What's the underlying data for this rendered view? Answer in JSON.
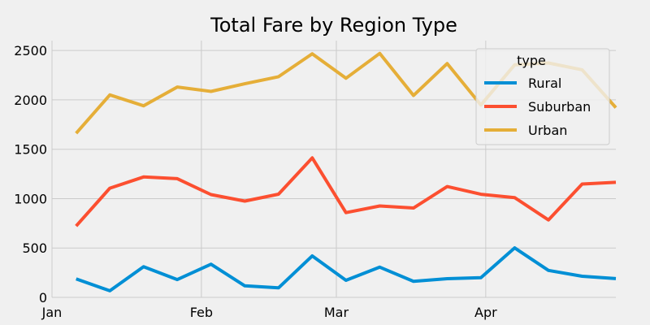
{
  "chart_data": {
    "type": "line",
    "title": "Total Fare by Region Type",
    "xlabel": "",
    "ylabel": "",
    "x": [
      "2019-01-06",
      "2019-01-13",
      "2019-01-20",
      "2019-01-27",
      "2019-02-03",
      "2019-02-10",
      "2019-02-17",
      "2019-02-24",
      "2019-03-03",
      "2019-03-10",
      "2019-03-17",
      "2019-03-24",
      "2019-03-31",
      "2019-04-07",
      "2019-04-14",
      "2019-04-21",
      "2019-04-28"
    ],
    "xlim": [
      "2019-01-01",
      "2019-04-28"
    ],
    "ylim": [
      0,
      2600
    ],
    "x_ticks": [
      {
        "date": "2019-01-01",
        "label": "Jan"
      },
      {
        "date": "2019-02-01",
        "label": "Feb"
      },
      {
        "date": "2019-03-01",
        "label": "Mar"
      },
      {
        "date": "2019-04-01",
        "label": "Apr"
      }
    ],
    "y_ticks": [
      0,
      500,
      1000,
      1500,
      2000,
      2500
    ],
    "grid": true,
    "legend": {
      "title": "type",
      "placement": "top-right"
    },
    "series": [
      {
        "name": "Rural",
        "color": "#008fd5",
        "values": [
          188,
          67,
          310,
          180,
          336,
          117,
          96,
          420,
          173,
          306,
          162,
          189,
          199,
          501,
          273,
          214,
          190
        ]
      },
      {
        "name": "Suburban",
        "color": "#fc4f30",
        "values": [
          722,
          1106,
          1219,
          1202,
          1041,
          975,
          1045,
          1413,
          858,
          926,
          905,
          1122,
          1044,
          1010,
          784,
          1148,
          1165
        ]
      },
      {
        "name": "Urban",
        "color": "#e5ae38",
        "values": [
          1661,
          2050,
          1940,
          2130,
          2086,
          2163,
          2235,
          2467,
          2219,
          2471,
          2045,
          2368,
          1948,
          2355,
          2374,
          2305,
          1921
        ]
      }
    ]
  }
}
